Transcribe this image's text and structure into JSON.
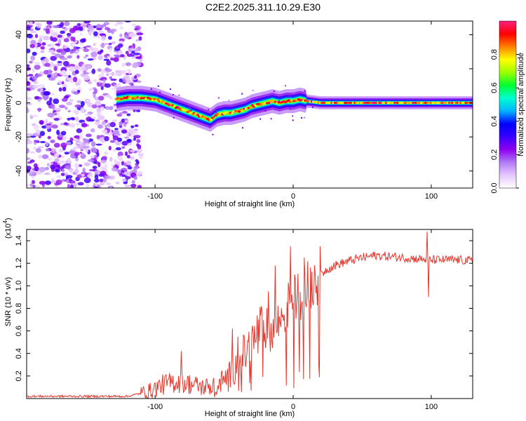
{
  "title": "C2E2.2025.311.10.29.E30",
  "chart_data": [
    {
      "type": "heatmap",
      "name": "spectrogram",
      "xlabel": "Height of straight line (km)",
      "ylabel": "Frequency (Hz)",
      "xlim": [
        -193,
        130
      ],
      "ylim": [
        -50,
        48
      ],
      "x_ticks": [
        -100,
        0,
        100
      ],
      "y_ticks": [
        -40,
        -20,
        0,
        20,
        40
      ],
      "colorbar": {
        "label": "Normalized spectral amplitude",
        "range": [
          0,
          1
        ],
        "ticks": [
          0.0,
          0.2,
          0.4,
          0.6,
          0.8
        ],
        "colors": [
          "#ffffff",
          "#e6c8ff",
          "#b27af7",
          "#8e00ee",
          "#3600ff",
          "#0000ff",
          "#00b4ff",
          "#00ffd0",
          "#00ff30",
          "#9cff00",
          "#ffff00",
          "#ff8000",
          "#ff0000",
          "#ff1f80"
        ]
      },
      "noise_region_x": [
        -193,
        -110
      ],
      "ridge": {
        "x": [
          -128,
          -120,
          -110,
          -100,
          -90,
          -80,
          -70,
          -60,
          -55,
          -50,
          -45,
          -40,
          -35,
          -30,
          -25,
          -20,
          -15,
          -10,
          -5,
          0,
          5,
          10,
          20,
          40,
          60,
          80,
          100,
          130
        ],
        "freq_hz": [
          2,
          3,
          3,
          2,
          -1,
          -4,
          -7,
          -10,
          -7,
          -6,
          -6,
          -5,
          -4,
          -2,
          -1,
          0,
          1,
          0,
          1,
          1,
          2,
          1,
          0,
          0,
          0,
          0,
          0,
          0
        ]
      }
    },
    {
      "type": "line",
      "name": "snr",
      "xlabel": "Height of straight line (km)",
      "ylabel": "SNR (10 * v/v)",
      "yscale_label": "(x10",
      "yscale_exp": "4",
      "yscale_suffix": ")",
      "xlim": [
        -193,
        130
      ],
      "ylim": [
        0,
        1.5
      ],
      "x_ticks": [
        -100,
        0,
        100
      ],
      "y_ticks": [
        0.2,
        0.4,
        0.6,
        0.8,
        1.0,
        1.2,
        1.4
      ],
      "color": "#e8372c",
      "trend": {
        "x": [
          -193,
          -150,
          -120,
          -105,
          -95,
          -85,
          -75,
          -65,
          -55,
          -45,
          -40,
          -35,
          -30,
          -25,
          -20,
          -15,
          -10,
          -5,
          0,
          5,
          10,
          15,
          20,
          25,
          30,
          40,
          50,
          60,
          70,
          80,
          90,
          100,
          110,
          120,
          130
        ],
        "y": [
          0.02,
          0.02,
          0.02,
          0.06,
          0.12,
          0.15,
          0.13,
          0.1,
          0.12,
          0.22,
          0.32,
          0.4,
          0.48,
          0.58,
          0.62,
          0.6,
          0.68,
          0.8,
          0.88,
          0.93,
          0.98,
          1.05,
          1.1,
          1.15,
          1.18,
          1.22,
          1.25,
          1.27,
          1.26,
          1.25,
          1.24,
          1.23,
          1.23,
          1.23,
          1.22
        ]
      },
      "spikes": [
        {
          "x": -81,
          "y": 0.42
        },
        {
          "x": -44,
          "y": 0.62
        },
        {
          "x": -40,
          "y": 0.55
        },
        {
          "x": -22,
          "y": 0.78
        },
        {
          "x": -18,
          "y": 0.95
        },
        {
          "x": -13,
          "y": 1.18
        },
        {
          "x": -2,
          "y": 1.35
        },
        {
          "x": 8,
          "y": 1.25
        },
        {
          "x": 97,
          "y": 1.48
        },
        {
          "x": 98,
          "y": 0.9
        }
      ]
    }
  ]
}
